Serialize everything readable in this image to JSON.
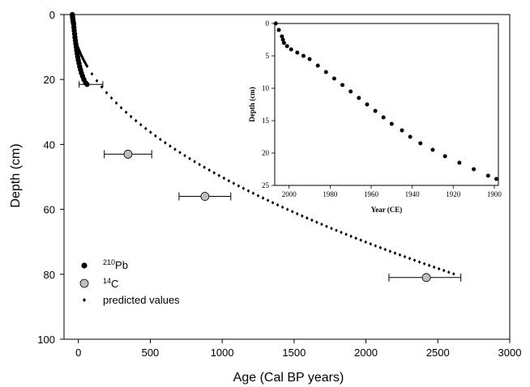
{
  "chart_data": [
    {
      "type": "scatter",
      "xlabel": "Age (Cal BP years)",
      "ylabel": "Depth (cm)",
      "xlim": [
        -100,
        3000
      ],
      "ylim": [
        0,
        100
      ],
      "y_inverted": true,
      "xticks": [
        0,
        500,
        1000,
        1500,
        2000,
        2500,
        3000
      ],
      "yticks": [
        0,
        20,
        40,
        60,
        80,
        100
      ],
      "grid": false,
      "legend_position": "bottom-left",
      "legend": [
        {
          "marker": "black-circle",
          "prefix": "210",
          "label": "Pb"
        },
        {
          "marker": "grey-circle",
          "prefix": "14",
          "label": "C"
        },
        {
          "marker": "small-diamond",
          "prefix": "",
          "label": "predicted values"
        }
      ],
      "series": [
        {
          "name": "210Pb",
          "points": [
            [
              -42,
              0
            ],
            [
              -41,
              0.5
            ],
            [
              -40,
              1
            ],
            [
              -38,
              1.5
            ],
            [
              -37,
              2
            ],
            [
              -35,
              2.5
            ],
            [
              -33,
              3
            ],
            [
              -31,
              4
            ],
            [
              -29,
              5
            ],
            [
              -26,
              6
            ],
            [
              -24,
              7
            ],
            [
              -21,
              8
            ],
            [
              -18,
              9
            ],
            [
              -15,
              10
            ],
            [
              -12,
              11
            ],
            [
              -9,
              12
            ],
            [
              -5,
              13
            ],
            [
              -1,
              14
            ],
            [
              4,
              15
            ],
            [
              9,
              16
            ],
            [
              15,
              17
            ],
            [
              21,
              18
            ],
            [
              29,
              19
            ],
            [
              38,
              20
            ],
            [
              50,
              21
            ],
            [
              60,
              21.5
            ]
          ],
          "error_points": [
            {
              "x": 60,
              "y": 21.5,
              "xmin": 5,
              "xmax": 170
            }
          ]
        },
        {
          "name": "14C",
          "points": [
            [
              345,
              43
            ],
            [
              880,
              56
            ],
            [
              2420,
              81
            ]
          ],
          "error_points": [
            {
              "x": 345,
              "y": 43,
              "xmin": 180,
              "xmax": 510
            },
            {
              "x": 880,
              "y": 56,
              "xmin": 700,
              "xmax": 1060
            },
            {
              "x": 2420,
              "y": 81,
              "xmin": 2160,
              "xmax": 2660
            }
          ]
        },
        {
          "name": "predicted values",
          "model": "depth = 1.55 * (age + 45) ^ 0.5 (approximate fit read from curve)",
          "x_range": [
            -42,
            2620
          ],
          "y_range": [
            0,
            83
          ]
        }
      ]
    },
    {
      "type": "scatter",
      "inset": true,
      "xlabel": "Year (CE)",
      "ylabel": "Depth (cm)",
      "xlim": [
        2007,
        1898
      ],
      "ylim": [
        0,
        25
      ],
      "y_inverted": true,
      "x_inverted": true,
      "xticks": [
        2000,
        1980,
        1960,
        1940,
        1920,
        1900
      ],
      "yticks": [
        0,
        5,
        10,
        15,
        20,
        25
      ],
      "series": [
        {
          "name": "210Pb",
          "points": [
            [
              2006.5,
              0
            ],
            [
              2005,
              1
            ],
            [
              2003.5,
              2
            ],
            [
              2003,
              2.5
            ],
            [
              2002.5,
              3
            ],
            [
              2001,
              3.5
            ],
            [
              1999,
              4
            ],
            [
              1996,
              4.5
            ],
            [
              1993,
              5
            ],
            [
              1990,
              5.5
            ],
            [
              1986,
              6.5
            ],
            [
              1982,
              7.5
            ],
            [
              1978,
              8.5
            ],
            [
              1974,
              9.5
            ],
            [
              1970,
              10.5
            ],
            [
              1966,
              11.5
            ],
            [
              1962,
              12.5
            ],
            [
              1958,
              13.5
            ],
            [
              1954,
              14.5
            ],
            [
              1950,
              15.5
            ],
            [
              1945,
              16.5
            ],
            [
              1941,
              17.5
            ],
            [
              1936,
              18.5
            ],
            [
              1930,
              19.5
            ],
            [
              1924,
              20.5
            ],
            [
              1917,
              21.5
            ],
            [
              1910,
              22.5
            ],
            [
              1903,
              23.5
            ],
            [
              1899,
              24
            ]
          ]
        }
      ]
    }
  ]
}
